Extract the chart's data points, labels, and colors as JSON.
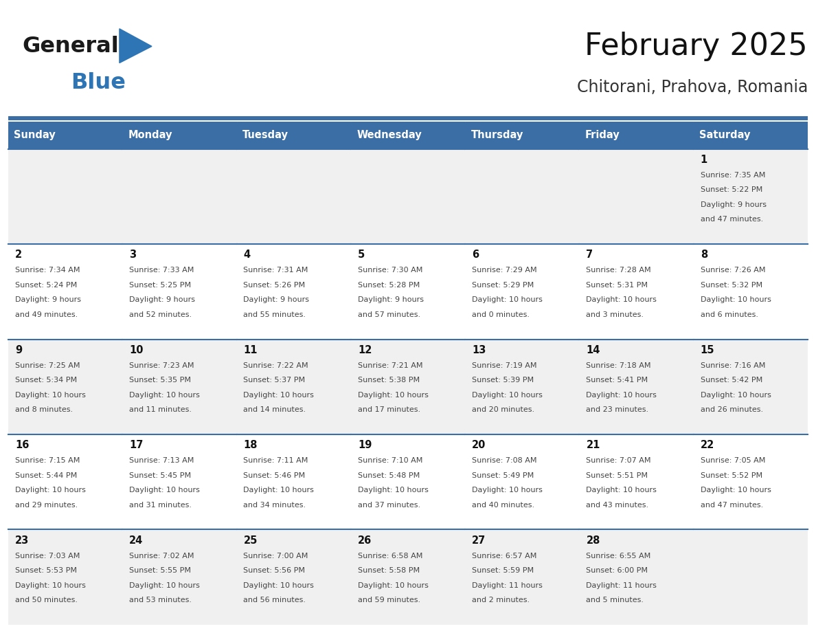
{
  "title": "February 2025",
  "subtitle": "Chitorani, Prahova, Romania",
  "days_of_week": [
    "Sunday",
    "Monday",
    "Tuesday",
    "Wednesday",
    "Thursday",
    "Friday",
    "Saturday"
  ],
  "header_bg": "#3a6ea5",
  "header_text": "#ffffff",
  "cell_bg_odd": "#f0f0f0",
  "cell_bg_even": "#ffffff",
  "border_color": "#3a6ea5",
  "info_text_color": "#444444",
  "day_number_color": "#111111",
  "logo_general_color": "#1a1a1a",
  "logo_blue_color": "#2e75b6",
  "title_color": "#111111",
  "subtitle_color": "#333333",
  "calendar_data": [
    [
      null,
      null,
      null,
      null,
      null,
      null,
      {
        "day": 1,
        "sunrise": "7:35 AM",
        "sunset": "5:22 PM",
        "daylight": "9 hours\nand 47 minutes."
      }
    ],
    [
      {
        "day": 2,
        "sunrise": "7:34 AM",
        "sunset": "5:24 PM",
        "daylight": "9 hours\nand 49 minutes."
      },
      {
        "day": 3,
        "sunrise": "7:33 AM",
        "sunset": "5:25 PM",
        "daylight": "9 hours\nand 52 minutes."
      },
      {
        "day": 4,
        "sunrise": "7:31 AM",
        "sunset": "5:26 PM",
        "daylight": "9 hours\nand 55 minutes."
      },
      {
        "day": 5,
        "sunrise": "7:30 AM",
        "sunset": "5:28 PM",
        "daylight": "9 hours\nand 57 minutes."
      },
      {
        "day": 6,
        "sunrise": "7:29 AM",
        "sunset": "5:29 PM",
        "daylight": "10 hours\nand 0 minutes."
      },
      {
        "day": 7,
        "sunrise": "7:28 AM",
        "sunset": "5:31 PM",
        "daylight": "10 hours\nand 3 minutes."
      },
      {
        "day": 8,
        "sunrise": "7:26 AM",
        "sunset": "5:32 PM",
        "daylight": "10 hours\nand 6 minutes."
      }
    ],
    [
      {
        "day": 9,
        "sunrise": "7:25 AM",
        "sunset": "5:34 PM",
        "daylight": "10 hours\nand 8 minutes."
      },
      {
        "day": 10,
        "sunrise": "7:23 AM",
        "sunset": "5:35 PM",
        "daylight": "10 hours\nand 11 minutes."
      },
      {
        "day": 11,
        "sunrise": "7:22 AM",
        "sunset": "5:37 PM",
        "daylight": "10 hours\nand 14 minutes."
      },
      {
        "day": 12,
        "sunrise": "7:21 AM",
        "sunset": "5:38 PM",
        "daylight": "10 hours\nand 17 minutes."
      },
      {
        "day": 13,
        "sunrise": "7:19 AM",
        "sunset": "5:39 PM",
        "daylight": "10 hours\nand 20 minutes."
      },
      {
        "day": 14,
        "sunrise": "7:18 AM",
        "sunset": "5:41 PM",
        "daylight": "10 hours\nand 23 minutes."
      },
      {
        "day": 15,
        "sunrise": "7:16 AM",
        "sunset": "5:42 PM",
        "daylight": "10 hours\nand 26 minutes."
      }
    ],
    [
      {
        "day": 16,
        "sunrise": "7:15 AM",
        "sunset": "5:44 PM",
        "daylight": "10 hours\nand 29 minutes."
      },
      {
        "day": 17,
        "sunrise": "7:13 AM",
        "sunset": "5:45 PM",
        "daylight": "10 hours\nand 31 minutes."
      },
      {
        "day": 18,
        "sunrise": "7:11 AM",
        "sunset": "5:46 PM",
        "daylight": "10 hours\nand 34 minutes."
      },
      {
        "day": 19,
        "sunrise": "7:10 AM",
        "sunset": "5:48 PM",
        "daylight": "10 hours\nand 37 minutes."
      },
      {
        "day": 20,
        "sunrise": "7:08 AM",
        "sunset": "5:49 PM",
        "daylight": "10 hours\nand 40 minutes."
      },
      {
        "day": 21,
        "sunrise": "7:07 AM",
        "sunset": "5:51 PM",
        "daylight": "10 hours\nand 43 minutes."
      },
      {
        "day": 22,
        "sunrise": "7:05 AM",
        "sunset": "5:52 PM",
        "daylight": "10 hours\nand 47 minutes."
      }
    ],
    [
      {
        "day": 23,
        "sunrise": "7:03 AM",
        "sunset": "5:53 PM",
        "daylight": "10 hours\nand 50 minutes."
      },
      {
        "day": 24,
        "sunrise": "7:02 AM",
        "sunset": "5:55 PM",
        "daylight": "10 hours\nand 53 minutes."
      },
      {
        "day": 25,
        "sunrise": "7:00 AM",
        "sunset": "5:56 PM",
        "daylight": "10 hours\nand 56 minutes."
      },
      {
        "day": 26,
        "sunrise": "6:58 AM",
        "sunset": "5:58 PM",
        "daylight": "10 hours\nand 59 minutes."
      },
      {
        "day": 27,
        "sunrise": "6:57 AM",
        "sunset": "5:59 PM",
        "daylight": "11 hours\nand 2 minutes."
      },
      {
        "day": 28,
        "sunrise": "6:55 AM",
        "sunset": "6:00 PM",
        "daylight": "11 hours\nand 5 minutes."
      },
      null
    ]
  ]
}
